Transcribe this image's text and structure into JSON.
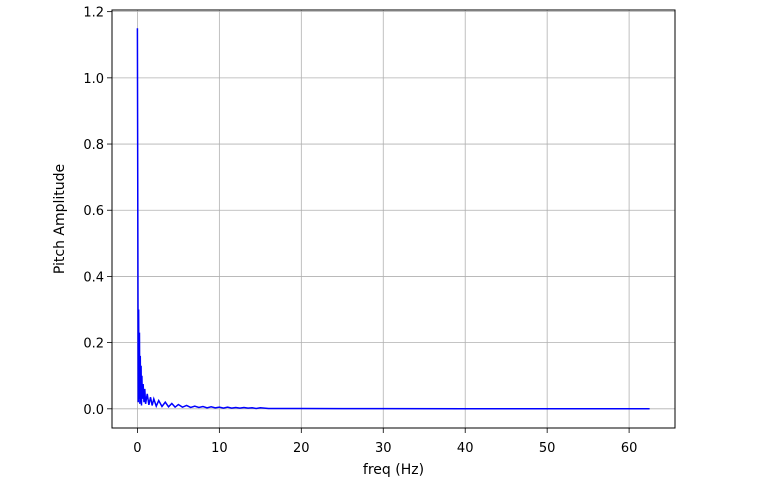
{
  "chart_data": {
    "type": "line",
    "title": "",
    "xlabel": "freq (Hz)",
    "ylabel": "Pitch Amplitude",
    "xlim": [
      -3.1,
      65.6
    ],
    "ylim": [
      -0.058,
      1.205
    ],
    "xticks": [
      0,
      10,
      20,
      30,
      40,
      50,
      60
    ],
    "xtick_labels": [
      "0",
      "10",
      "20",
      "30",
      "40",
      "50",
      "60"
    ],
    "yticks": [
      0.0,
      0.2,
      0.4,
      0.6,
      0.8,
      1.0,
      1.2
    ],
    "ytick_labels": [
      "0.0",
      "0.2",
      "0.4",
      "0.6",
      "0.8",
      "1.0",
      "1.2"
    ],
    "grid": true,
    "line_color": "#0000ff",
    "series": [
      {
        "x": [
          0.0,
          0.1,
          0.15,
          0.2,
          0.25,
          0.3,
          0.35,
          0.4,
          0.45,
          0.5,
          0.55,
          0.6,
          0.7,
          0.8,
          0.9,
          1.0,
          1.2,
          1.4,
          1.6,
          1.8,
          2.0,
          2.3,
          2.6,
          3.0,
          3.4,
          3.8,
          4.2,
          4.6,
          5.0,
          5.5,
          6.0,
          6.5,
          7.0,
          7.5,
          8.0,
          8.5,
          9.0,
          9.5,
          10.0,
          10.5,
          11.0,
          11.5,
          12.0,
          12.5,
          13.0,
          13.5,
          14.0,
          14.5,
          15.0,
          16.0,
          18.0,
          20.0,
          25.0,
          30.0,
          40.0,
          50.0,
          60.0,
          62.5
        ],
        "y": [
          1.15,
          0.02,
          0.3,
          0.03,
          0.23,
          0.015,
          0.16,
          0.02,
          0.13,
          0.01,
          0.1,
          0.03,
          0.075,
          0.02,
          0.06,
          0.015,
          0.045,
          0.012,
          0.035,
          0.01,
          0.03,
          0.008,
          0.025,
          0.007,
          0.02,
          0.006,
          0.016,
          0.005,
          0.013,
          0.005,
          0.01,
          0.004,
          0.008,
          0.004,
          0.007,
          0.003,
          0.006,
          0.003,
          0.005,
          0.002,
          0.005,
          0.002,
          0.004,
          0.002,
          0.004,
          0.002,
          0.003,
          0.001,
          0.003,
          0.001,
          0.001,
          0.001,
          0.0005,
          0.0005,
          0.0003,
          0.0003,
          0.0002,
          0.0002
        ]
      }
    ]
  }
}
